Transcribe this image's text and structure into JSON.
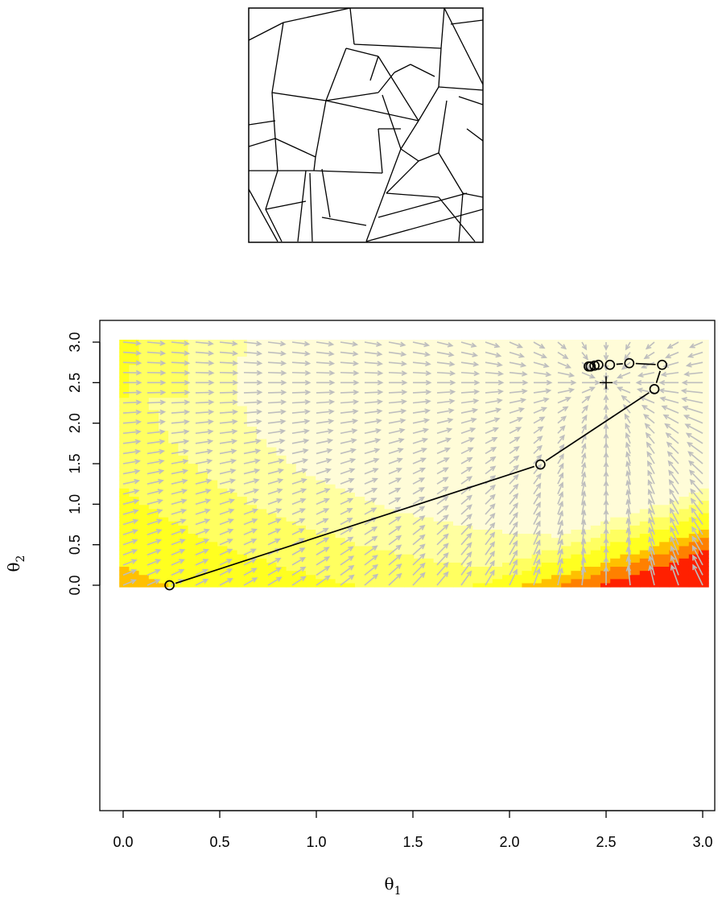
{
  "chart_data": [
    {
      "type": "line",
      "panel": "tessellation",
      "description_visible": "square window containing random line-segment tessellation"
    },
    {
      "type": "heatmap",
      "panel": "gradient-field",
      "xlabel": "θ",
      "xlabel_sub": "1",
      "ylabel": "θ",
      "ylabel_sub": "2",
      "xlim": [
        -0.12,
        3.12
      ],
      "ylim": [
        -0.12,
        3.12
      ],
      "xticks": [
        "0.0",
        "0.5",
        "1.0",
        "1.5",
        "2.0",
        "2.5",
        "3.0"
      ],
      "xtick_values": [
        0,
        0.5,
        1,
        1.5,
        2,
        2.5,
        3
      ],
      "yticks": [
        "0.0",
        "0.5",
        "1.0",
        "1.5",
        "2.0",
        "2.5",
        "3.0"
      ],
      "ytick_values": [
        0,
        0.5,
        1,
        1.5,
        2,
        2.5,
        3
      ],
      "grid": false,
      "colors": {
        "lightest": "#fffcd8",
        "light": "#ffffa0",
        "mid": "#ffff60",
        "yellow": "#ffff20",
        "orange": "#ffc000",
        "deep_orange": "#ff8000",
        "red": "#ff2000",
        "arrow": "#bebebe",
        "path": "#000000"
      },
      "target": {
        "x": 2.5,
        "y": 2.5
      },
      "path": {
        "x": [
          0.24,
          2.16,
          2.75,
          2.79,
          2.62,
          2.52,
          2.46,
          2.44,
          2.42,
          2.41
        ],
        "y": [
          0.0,
          1.49,
          2.42,
          2.72,
          2.74,
          2.72,
          2.72,
          2.71,
          2.7,
          2.7
        ]
      }
    }
  ]
}
